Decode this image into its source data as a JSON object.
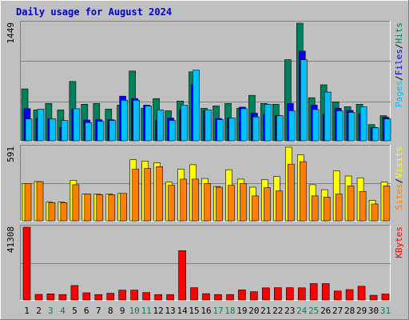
{
  "chart_data": {
    "type": "bar",
    "title": "Daily usage for August 2024",
    "categories": [
      "1",
      "2",
      "3",
      "4",
      "5",
      "6",
      "7",
      "8",
      "9",
      "10",
      "11",
      "12",
      "13",
      "14",
      "15",
      "16",
      "17",
      "18",
      "19",
      "20",
      "21",
      "22",
      "23",
      "24",
      "25",
      "26",
      "27",
      "28",
      "29",
      "30",
      "31"
    ],
    "weekend_days": [
      3,
      4,
      10,
      11,
      17,
      18,
      24,
      25,
      31
    ],
    "colors": {
      "hits": "#00805c",
      "files": "#0000ff",
      "pages": "#00c0ff",
      "visits": "#ffff00",
      "sites": "#ff8000",
      "kbytes": "#ff0000",
      "weekday_label": "#000000",
      "weekend_label": "#00805c",
      "plot_bg": "#c0c0c0",
      "title": "#0000cc"
    },
    "panels": [
      {
        "name": "hits-files-pages",
        "ymax_label": "1449",
        "ylim": [
          0,
          1449
        ],
        "legend": [
          "Pages",
          "/",
          "Files",
          "/",
          "Hits"
        ],
        "series": [
          {
            "name": "Hits",
            "values": [
              640,
              380,
              460,
              380,
              730,
              450,
              460,
              390,
              440,
              860,
              400,
              520,
              370,
              490,
              850,
              400,
              430,
              460,
              400,
              560,
              460,
              450,
              1000,
              1449,
              530,
              690,
              480,
              420,
              450,
              200,
              310
            ]
          },
          {
            "name": "Files",
            "values": [
              395,
              275,
              270,
              165,
              390,
              255,
              260,
              260,
              550,
              520,
              440,
              250,
              280,
              385,
              690,
              370,
              275,
              280,
              415,
              340,
              330,
              310,
              460,
              1105,
              440,
              330,
              400,
              375,
              330,
              165,
              290
            ]
          },
          {
            "name": "Pages",
            "values": [
              270,
              390,
              270,
              250,
              395,
              225,
              240,
              250,
              500,
              500,
              430,
              380,
              250,
              440,
              870,
              380,
              260,
              280,
              395,
              295,
              450,
              310,
              370,
              1000,
              385,
              600,
              370,
              350,
              420,
              160,
              270
            ]
          }
        ]
      },
      {
        "name": "visits-sites",
        "ymax_label": "591",
        "ylim": [
          0,
          591
        ],
        "legend": [
          "Sites",
          "/",
          "Visits"
        ],
        "series": [
          {
            "name": "Visits",
            "values": [
              300,
              315,
              150,
              150,
              325,
              215,
              215,
              215,
              220,
              490,
              480,
              465,
              310,
              415,
              450,
              340,
              275,
              410,
              335,
              270,
              330,
              355,
              591,
              530,
              290,
              250,
              400,
              360,
              345,
              165,
              310
            ]
          },
          {
            "name": "Sites",
            "values": [
              300,
              315,
              145,
              145,
              290,
              215,
              210,
              210,
              220,
              415,
              420,
              435,
              285,
              335,
              335,
              300,
              270,
              285,
              300,
              200,
              265,
              240,
              455,
              475,
              200,
              190,
              215,
              280,
              235,
              135,
              280
            ]
          }
        ]
      },
      {
        "name": "kbytes",
        "ymax_label": "41308",
        "ylim": [
          0,
          41308
        ],
        "legend": [
          "KBytes"
        ],
        "series": [
          {
            "name": "KBytes",
            "values": [
              41308,
              3200,
              3500,
              3100,
              8200,
              4100,
              3100,
              3800,
              5600,
              5600,
              4200,
              3100,
              3100,
              28000,
              7000,
              3600,
              3100,
              3100,
              5700,
              4700,
              6900,
              7000,
              7000,
              6900,
              9300,
              9300,
              5100,
              5900,
              7800,
              2700,
              3400
            ]
          }
        ]
      }
    ]
  }
}
